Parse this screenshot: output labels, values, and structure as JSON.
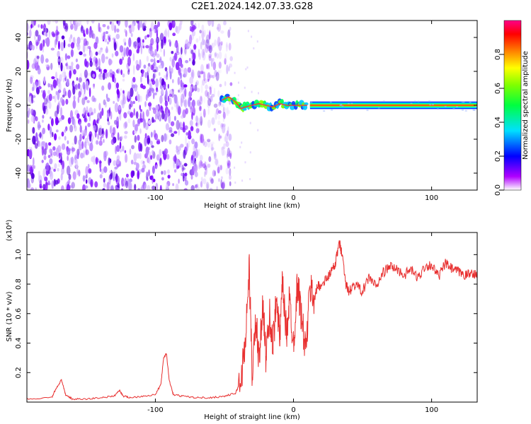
{
  "title": "C2E1.2024.142.07.33.G28",
  "chart_data": [
    {
      "type": "heatmap",
      "xlabel": "Height of straight line (km)",
      "ylabel": "Frequency (Hz)",
      "xlim": [
        -193,
        133
      ],
      "ylim": [
        -50,
        50
      ],
      "x_ticks": [
        -100,
        0,
        100
      ],
      "y_ticks": [
        -40,
        -20,
        0,
        20,
        40
      ],
      "colorbar": {
        "label": "Normalized spectral amplitude",
        "range": [
          0.0,
          1.0
        ],
        "ticks": [
          0.0,
          0.2,
          0.4,
          0.6,
          0.8
        ],
        "tick_labels": [
          "0.0",
          "0.2",
          "0.4",
          "0.6",
          "0.8"
        ]
      },
      "regions": [
        {
          "x_range": [
            -193,
            -45
          ],
          "y_range": [
            -50,
            50
          ],
          "amplitude": 0.1
        },
        {
          "x_range": [
            -55,
            12
          ],
          "y_range": [
            -5,
            5
          ],
          "amplitude": 0.35
        },
        {
          "x_range": [
            12,
            133
          ],
          "y_range": [
            -1,
            1
          ],
          "amplitude": 0.95
        }
      ],
      "ridge": {
        "x": [
          -52,
          -47,
          -42,
          -38,
          -35,
          -30,
          -25,
          -20,
          -15,
          -10,
          -5,
          0,
          5,
          10
        ],
        "y": [
          3,
          5,
          2,
          -2,
          -1,
          0,
          1,
          0,
          -1,
          1,
          0,
          0,
          0,
          0
        ]
      }
    },
    {
      "type": "line",
      "xlabel": "Height of straight line (km)",
      "ylabel": "SNR (10 * v/v)",
      "y_multiplier": "(x10⁴)",
      "xlim": [
        -193,
        133
      ],
      "ylim": [
        0,
        1.15
      ],
      "x_ticks": [
        -100,
        0,
        100
      ],
      "y_ticks": [
        0.2,
        0.4,
        0.6,
        0.8,
        1.0
      ],
      "y_tick_labels": [
        "0.2",
        "0.4",
        "0.6",
        "0.8",
        "1.0"
      ],
      "color": "#e83030",
      "series": [
        {
          "x": [
            -193,
            -175,
            -172,
            -168,
            -165,
            -160,
            -150,
            -140,
            -130,
            -126,
            -123,
            -118,
            -110,
            -100,
            -96,
            -94,
            -92,
            -90,
            -87,
            -80,
            -70,
            -60,
            -50,
            -42,
            -38,
            -35,
            -32,
            -30,
            -27,
            -25,
            -22,
            -20,
            -17,
            -15,
            -12,
            -10,
            -8,
            -5,
            -3,
            0,
            3,
            6,
            9,
            12,
            15,
            18,
            20,
            25,
            28,
            30,
            33,
            35,
            38,
            40,
            45,
            50,
            55,
            60,
            65,
            70,
            75,
            80,
            85,
            90,
            95,
            100,
            105,
            110,
            115,
            120,
            125,
            130,
            133
          ],
          "y": [
            0.02,
            0.03,
            0.09,
            0.15,
            0.05,
            0.02,
            0.02,
            0.03,
            0.04,
            0.08,
            0.04,
            0.03,
            0.04,
            0.05,
            0.12,
            0.3,
            0.33,
            0.15,
            0.05,
            0.04,
            0.03,
            0.03,
            0.04,
            0.06,
            0.15,
            0.4,
            0.9,
            0.2,
            0.55,
            0.25,
            0.7,
            0.3,
            0.6,
            0.35,
            0.75,
            0.4,
            0.8,
            0.45,
            0.7,
            0.4,
            0.82,
            0.55,
            0.35,
            0.78,
            0.7,
            0.8,
            0.78,
            0.85,
            0.9,
            0.92,
            1.08,
            1.02,
            0.8,
            0.75,
            0.8,
            0.75,
            0.85,
            0.78,
            0.88,
            0.92,
            0.9,
            0.86,
            0.9,
            0.84,
            0.92,
            0.93,
            0.85,
            0.94,
            0.9,
            0.88,
            0.86,
            0.88,
            0.85
          ]
        }
      ]
    }
  ]
}
